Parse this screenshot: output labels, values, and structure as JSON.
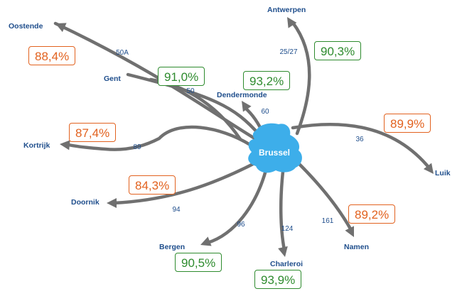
{
  "center": {
    "label": "Brussel",
    "color": "#3daeea"
  },
  "colors": {
    "good": "#2e8b2e",
    "bad": "#e2621f"
  },
  "routes": [
    {
      "id": "oostende",
      "city": "Oostende",
      "road": "50A",
      "pct": "88,4%",
      "status": "bad"
    },
    {
      "id": "gent",
      "city": "Gent",
      "road": "50",
      "pct": "91,0%",
      "status": "good"
    },
    {
      "id": "dendermonde",
      "city": "Dendermonde",
      "road": "60",
      "pct": "93,2%",
      "status": "good"
    },
    {
      "id": "antwerpen",
      "city": "Antwerpen",
      "road": "25/27",
      "pct": "90,3%",
      "status": "good"
    },
    {
      "id": "luik",
      "city": "Luik",
      "road": "36",
      "pct": "89,9%",
      "status": "bad"
    },
    {
      "id": "namen",
      "city": "Namen",
      "road": "161",
      "pct": "89,2%",
      "status": "bad"
    },
    {
      "id": "charleroi",
      "city": "Charleroi",
      "road": "124",
      "pct": "93,9%",
      "status": "good"
    },
    {
      "id": "bergen",
      "city": "Bergen",
      "road": "96",
      "pct": "90,5%",
      "status": "good"
    },
    {
      "id": "doornik",
      "city": "Doornik",
      "road": "94",
      "pct": "84,3%",
      "status": "bad"
    },
    {
      "id": "kortrijk",
      "city": "Kortrijk",
      "road": "89",
      "pct": "87,4%",
      "status": "bad"
    }
  ]
}
